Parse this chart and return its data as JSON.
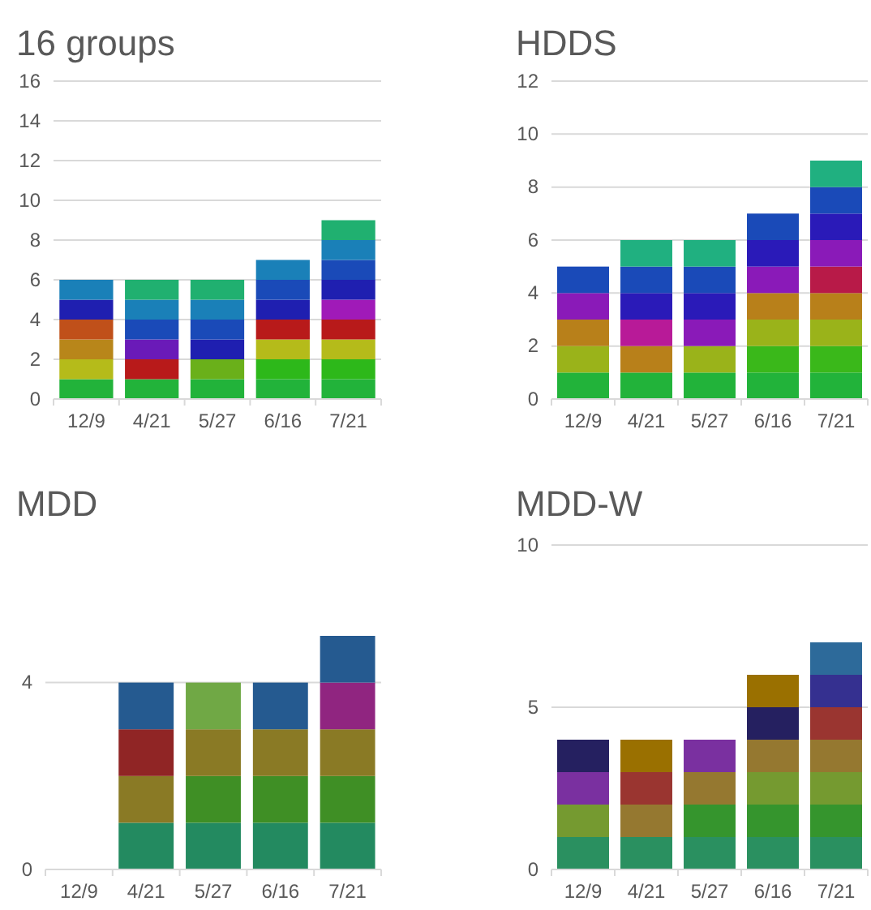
{
  "chart_data": [
    {
      "type": "bar",
      "title": "16 groups",
      "stacked": true,
      "grid": "y",
      "categories": [
        "12/9",
        "4/21",
        "5/27",
        "6/16",
        "7/21"
      ],
      "ylim": [
        0,
        16
      ],
      "yticks": [
        0,
        2,
        4,
        6,
        8,
        10,
        12,
        14,
        16
      ],
      "series": [
        {
          "values": [
            1,
            1,
            1,
            1,
            1
          ],
          "colors": [
            "#22b33a",
            "#22b33a",
            "#22b33a",
            "#22b33a",
            "#22b33a"
          ]
        },
        {
          "values": [
            1,
            1,
            1,
            1,
            1
          ],
          "colors": [
            "#b5bb1a",
            "#b81a1a",
            "#6ab01a",
            "#2db81a",
            "#2db81a"
          ]
        },
        {
          "values": [
            1,
            1,
            1,
            1,
            1
          ],
          "colors": [
            "#b8861a",
            "#6a1ab8",
            "#1f1fb0",
            "#b5bb1a",
            "#b5bb1a"
          ]
        },
        {
          "values": [
            1,
            1,
            1,
            1,
            1
          ],
          "colors": [
            "#c0501a",
            "#1a4ab8",
            "#1a4ab8",
            "#b81a1a",
            "#b81a1a"
          ]
        },
        {
          "values": [
            1,
            1,
            1,
            1,
            1
          ],
          "colors": [
            "#1f1fb0",
            "#1a80b8",
            "#1a80b8",
            "#1f1fb0",
            "#a01ab8"
          ]
        },
        {
          "values": [
            1,
            1,
            1,
            1,
            1
          ],
          "colors": [
            "#1a80b8",
            "#20b070",
            "#20b070",
            "#1a4ab8",
            "#1f1fb0"
          ]
        },
        {
          "values": [
            null,
            null,
            null,
            1,
            1
          ],
          "colors": [
            null,
            null,
            null,
            "#1a80b8",
            "#1a4ab8"
          ]
        },
        {
          "values": [
            null,
            null,
            null,
            null,
            1
          ],
          "colors": [
            null,
            null,
            null,
            null,
            "#1a80b8"
          ]
        },
        {
          "values": [
            null,
            null,
            null,
            null,
            1
          ],
          "colors": [
            null,
            null,
            null,
            null,
            "#20b070"
          ]
        }
      ]
    },
    {
      "type": "bar",
      "title": "HDDS",
      "stacked": true,
      "grid": "y",
      "categories": [
        "12/9",
        "4/21",
        "5/27",
        "6/16",
        "7/21"
      ],
      "ylim": [
        0,
        12
      ],
      "yticks": [
        0,
        2,
        4,
        6,
        8,
        10,
        12
      ],
      "series": [
        {
          "values": [
            1,
            1,
            1,
            1,
            1
          ],
          "colors": [
            "#22b33a",
            "#22b33a",
            "#22b33a",
            "#22b33a",
            "#22b33a"
          ]
        },
        {
          "values": [
            1,
            1,
            1,
            1,
            1
          ],
          "colors": [
            "#9ab31a",
            "#b8801a",
            "#9ab31a",
            "#3ab81a",
            "#3ab81a"
          ]
        },
        {
          "values": [
            1,
            1,
            1,
            1,
            1
          ],
          "colors": [
            "#b8801a",
            "#b81a98",
            "#8a1ab8",
            "#9ab31a",
            "#9ab31a"
          ]
        },
        {
          "values": [
            1,
            1,
            1,
            1,
            1
          ],
          "colors": [
            "#8a1ab8",
            "#2a1ab8",
            "#2a1ab8",
            "#b8801a",
            "#b8801a"
          ]
        },
        {
          "values": [
            1,
            1,
            1,
            1,
            1
          ],
          "colors": [
            "#1a4ab8",
            "#1a4ab8",
            "#1a4ab8",
            "#8a1ab8",
            "#b81a48"
          ]
        },
        {
          "values": [
            null,
            1,
            1,
            1,
            1
          ],
          "colors": [
            null,
            "#20b080",
            "#20b080",
            "#2a1ab8",
            "#8a1ab8"
          ]
        },
        {
          "values": [
            null,
            null,
            null,
            1,
            1
          ],
          "colors": [
            null,
            null,
            null,
            "#1a4ab8",
            "#2a1ab8"
          ]
        },
        {
          "values": [
            null,
            null,
            null,
            null,
            1
          ],
          "colors": [
            null,
            null,
            null,
            null,
            "#1a4ab8"
          ]
        },
        {
          "values": [
            null,
            null,
            null,
            null,
            1
          ],
          "colors": [
            null,
            null,
            null,
            null,
            "#20b080"
          ]
        }
      ]
    },
    {
      "type": "bar",
      "title": "MDD",
      "stacked": true,
      "grid": "y",
      "categories": [
        "12/9",
        "4/21",
        "5/27",
        "6/16",
        "7/21"
      ],
      "ylim": [
        0,
        5
      ],
      "yticks": [
        0,
        4
      ],
      "series": [
        {
          "values": [
            null,
            1,
            1,
            1,
            1
          ],
          "colors": [
            null,
            "#238a60",
            "#238a60",
            "#238a60",
            "#238a60"
          ]
        },
        {
          "values": [
            null,
            1,
            1,
            1,
            1
          ],
          "colors": [
            null,
            "#8a7a25",
            "#3f8f25",
            "#3f8f25",
            "#3f8f25"
          ]
        },
        {
          "values": [
            null,
            1,
            1,
            1,
            1
          ],
          "colors": [
            null,
            "#902525",
            "#8a7a25",
            "#8a7a25",
            "#8a7a25"
          ]
        },
        {
          "values": [
            null,
            1,
            1,
            1,
            1
          ],
          "colors": [
            null,
            "#255a90",
            "#70a845",
            "#255a90",
            "#902580"
          ]
        },
        {
          "values": [
            null,
            null,
            null,
            null,
            1
          ],
          "colors": [
            null,
            null,
            null,
            null,
            "#255a90"
          ]
        }
      ]
    },
    {
      "type": "bar",
      "title": "MDD-W",
      "stacked": true,
      "grid": "y",
      "categories": [
        "12/9",
        "4/21",
        "5/27",
        "6/16",
        "7/21"
      ],
      "ylim": [
        0,
        10
      ],
      "yticks": [
        0,
        5,
        10
      ],
      "series": [
        {
          "values": [
            1,
            1,
            1,
            1,
            1
          ],
          "colors": [
            "#2a9060",
            "#2a9060",
            "#2a9060",
            "#2a9060",
            "#2a9060"
          ]
        },
        {
          "values": [
            1,
            1,
            1,
            1,
            1
          ],
          "colors": [
            "#759a30",
            "#957830",
            "#35952d",
            "#35952d",
            "#35952d"
          ]
        },
        {
          "values": [
            1,
            1,
            1,
            1,
            1
          ],
          "colors": [
            "#7a30a0",
            "#9a3530",
            "#957830",
            "#759a30",
            "#759a30"
          ]
        },
        {
          "values": [
            1,
            1,
            1,
            1,
            1
          ],
          "colors": [
            "#252060",
            "#9a7000",
            "#7a30a0",
            "#957830",
            "#957830"
          ]
        },
        {
          "values": [
            null,
            null,
            null,
            1,
            1
          ],
          "colors": [
            null,
            null,
            null,
            "#252060",
            "#9a3530"
          ]
        },
        {
          "values": [
            null,
            null,
            null,
            1,
            1
          ],
          "colors": [
            null,
            null,
            null,
            "#9a7000",
            "#353090"
          ]
        },
        {
          "values": [
            null,
            null,
            null,
            null,
            1
          ],
          "colors": [
            null,
            null,
            null,
            null,
            "#2d6a9a"
          ]
        }
      ]
    }
  ]
}
